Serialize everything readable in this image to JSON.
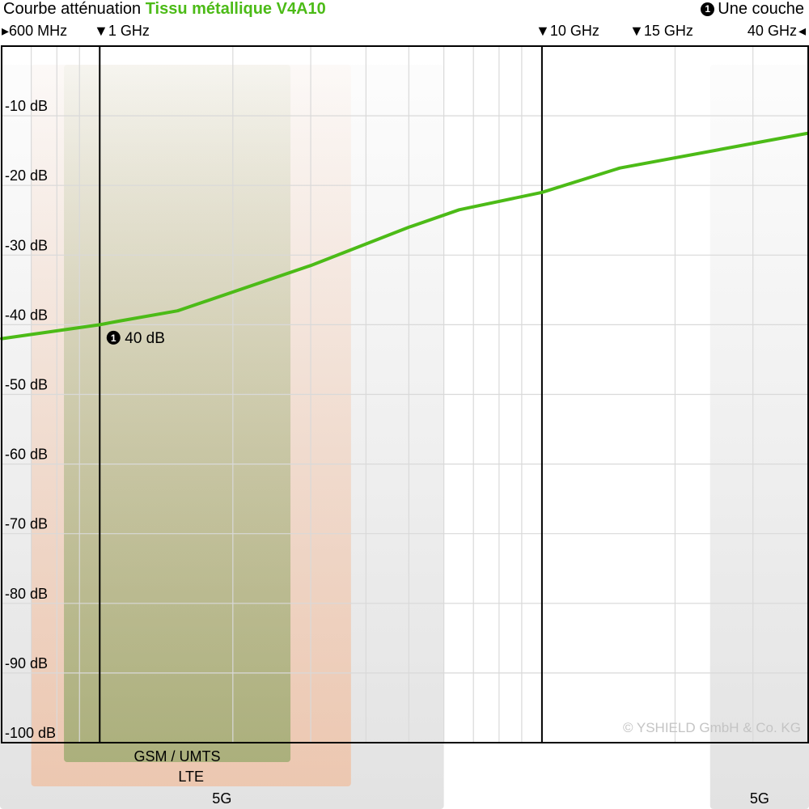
{
  "header": {
    "title_prefix": "Courbe atténuation",
    "title_product": "Tissu métallique V4A10",
    "layer_number": "1",
    "layer_text": "Une couche"
  },
  "freq_markers": [
    {
      "label": "600 MHz",
      "arrow": "▸"
    },
    {
      "label": "1 GHz",
      "arrow": "▼"
    },
    {
      "label": "10 GHz",
      "arrow": "▼"
    },
    {
      "label": "15 GHz",
      "arrow": "▼"
    },
    {
      "label": "40 GHz",
      "arrow": "◂"
    }
  ],
  "chart_data": {
    "type": "line",
    "x_scale": "log",
    "xlim_mhz": [
      600,
      40000
    ],
    "ylim_db": [
      -100,
      0
    ],
    "grid": true,
    "x_unit": "MHz",
    "y_ticks": [
      {
        "value": -10,
        "label": "-10 dB"
      },
      {
        "value": -20,
        "label": "-20 dB"
      },
      {
        "value": -30,
        "label": "-30 dB"
      },
      {
        "value": -40,
        "label": "-40 dB"
      },
      {
        "value": -50,
        "label": "-50 dB"
      },
      {
        "value": -60,
        "label": "-60 dB"
      },
      {
        "value": -70,
        "label": "-70 dB"
      },
      {
        "value": -80,
        "label": "-80 dB"
      },
      {
        "value": -90,
        "label": "-90 dB"
      },
      {
        "value": -100,
        "label": "-100 dB"
      }
    ],
    "x_marker_lines_mhz": [
      1000,
      10000
    ],
    "series": [
      {
        "color": "#4cbb17",
        "x_mhz": [
          600,
          1000,
          1100,
          1500,
          3000,
          5000,
          6500,
          10000,
          15000,
          40000
        ],
        "y_db": [
          -42,
          -40,
          -39.5,
          -38,
          -31.5,
          -26,
          -23.5,
          -21,
          -17.5,
          -12.5
        ]
      }
    ],
    "annotations": [
      {
        "number": "1",
        "text": "40 dB",
        "x_mhz": 1000,
        "y_db": -40
      }
    ],
    "bands": [
      {
        "label": "GSM / UMTS",
        "from_mhz": 830,
        "to_mhz": 2700,
        "color": "#7f9f58"
      },
      {
        "label": "LTE",
        "from_mhz": 700,
        "to_mhz": 3700,
        "color": "#f3b58f"
      },
      {
        "label": "5G",
        "from_mhz": 600,
        "to_mhz": 6000,
        "color": "#cfcfcf"
      },
      {
        "label": "5G",
        "from_mhz": 24000,
        "to_mhz": 40000,
        "color": "#cfcfcf"
      }
    ]
  },
  "watermark": "© YSHIELD GmbH & Co. KG"
}
